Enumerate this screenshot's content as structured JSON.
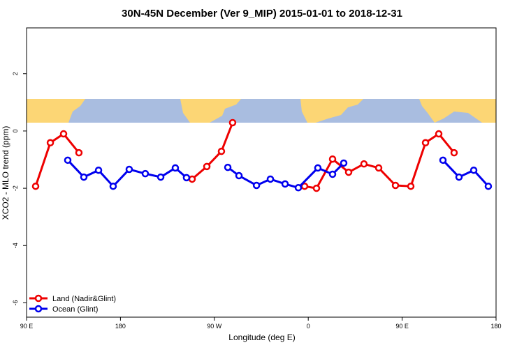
{
  "chart_data": {
    "type": "line",
    "title": "30N-45N December (Ver 9_MIP)   2015-01-01 to 2018-12-31",
    "x_label": "Longitude (deg E)",
    "y_label": "XCO2 - MLO trend (ppm)",
    "xlim": [
      90,
      540
    ],
    "xticks": [
      {
        "value": 90,
        "label": "90 E"
      },
      {
        "value": 180,
        "label": "180"
      },
      {
        "value": 270,
        "label": "90 W"
      },
      {
        "value": 360,
        "label": "0"
      },
      {
        "value": 450,
        "label": "90 E"
      },
      {
        "value": 540,
        "label": "180"
      }
    ],
    "ylim": [
      -6.5,
      3.6
    ],
    "yticks": [
      -6,
      -4,
      -2,
      0,
      2
    ],
    "legend": "bottom-left",
    "series": [
      {
        "name": "Land (Nadir&Glint)",
        "color": "#ee0000",
        "segments": [
          {
            "x": [
              98.7,
              112.8,
              125.5,
              140.2
            ],
            "values": [
              -1.93,
              -0.41,
              -0.1,
              -0.76
            ]
          },
          {
            "x": [
              248.7,
              262.8,
              276.8,
              287.5
            ],
            "values": [
              -1.68,
              -1.24,
              -0.71,
              0.29
            ]
          },
          {
            "x": [
              356.5,
              367.9,
              383.3,
              398.7,
              413.4,
              427.5,
              443.6,
              458.3,
              472.4,
              485.1,
              499.8
            ],
            "values": [
              -1.93,
              -2.0,
              -0.98,
              -1.44,
              -1.15,
              -1.29,
              -1.9,
              -1.93,
              -0.41,
              -0.1,
              -0.76
            ]
          }
        ]
      },
      {
        "name": "Ocean (Glint)",
        "color": "#0000ee",
        "segments": [
          {
            "x": [
              129.5,
              144.9,
              159.0,
              173.0,
              188.4,
              203.8,
              218.6,
              232.6,
              243.3
            ],
            "values": [
              -1.02,
              -1.61,
              -1.37,
              -1.93,
              -1.34,
              -1.49,
              -1.61,
              -1.29,
              -1.63
            ]
          },
          {
            "x": [
              282.9,
              293.6,
              310.4,
              323.7,
              337.8,
              350.5,
              369.2,
              383.3,
              394.0
            ],
            "values": [
              -1.27,
              -1.56,
              -1.9,
              -1.68,
              -1.85,
              -1.98,
              -1.29,
              -1.51,
              -1.12
            ]
          },
          {
            "x": [
              489.1,
              504.5,
              518.6,
              532.6
            ],
            "values": [
              -1.02,
              -1.61,
              -1.37,
              -1.93
            ]
          }
        ]
      }
    ]
  }
}
